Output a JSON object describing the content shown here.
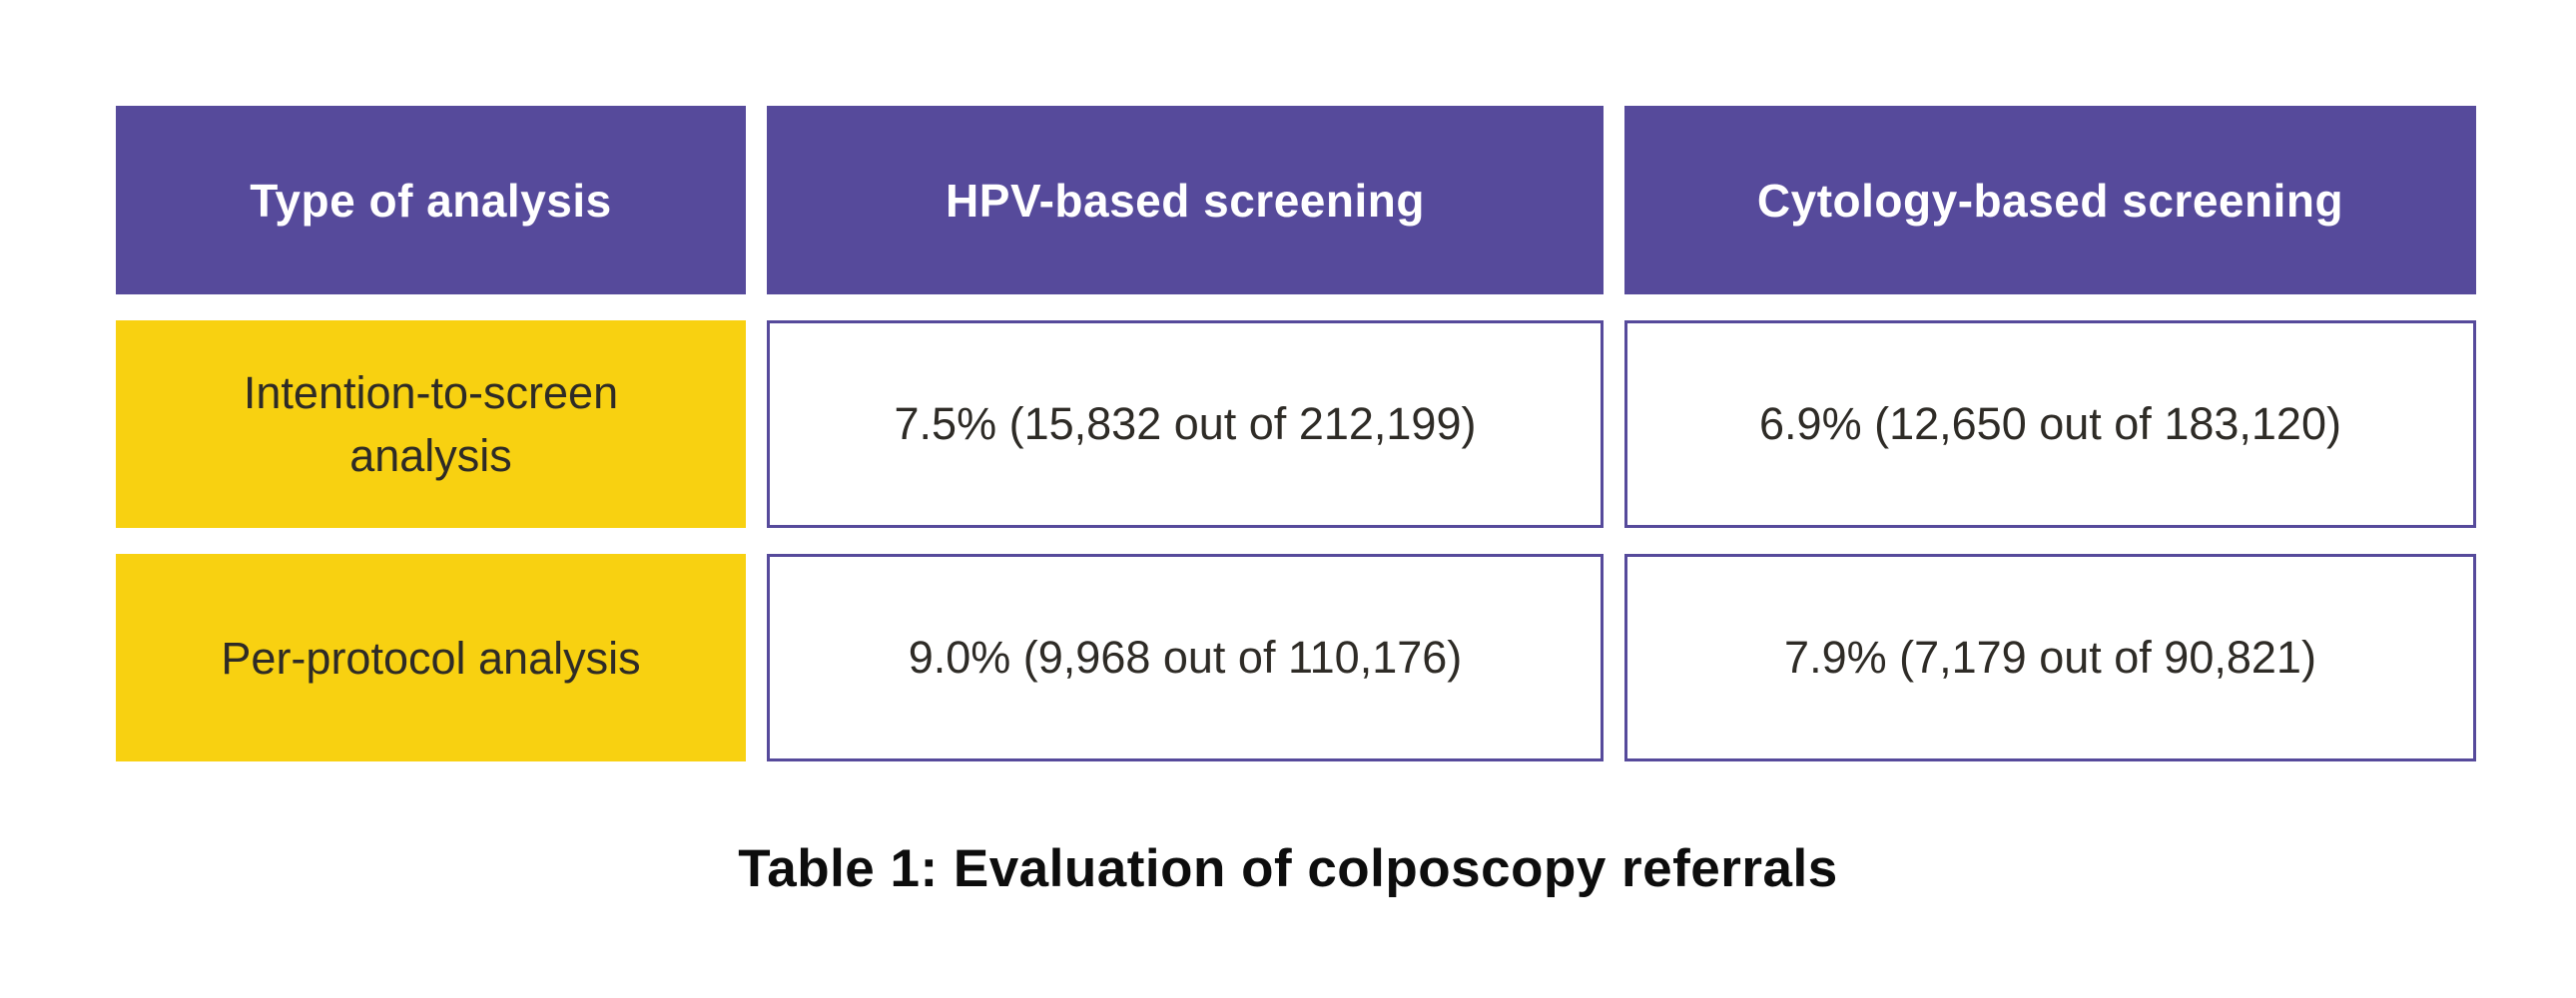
{
  "chart_data": {
    "type": "table",
    "title": "Table 1: Evaluation of colposcopy referrals",
    "columns": [
      "Type of analysis",
      "HPV-based screening",
      "Cytology-based screening"
    ],
    "rows": [
      {
        "label": "Intention-to-screen analysis",
        "hpv_display": "7.5% (15,832 out of 212,199)",
        "cytology_display": "6.9% (12,650 out of 183,120)",
        "hpv_percent": 7.5,
        "hpv_numerator": 15832,
        "hpv_denominator": 212199,
        "cytology_percent": 6.9,
        "cytology_numerator": 12650,
        "cytology_denominator": 183120
      },
      {
        "label": "Per-protocol analysis",
        "hpv_display": "9.0% (9,968 out of 110,176)",
        "cytology_display": "7.9% (7,179 out of 90,821)",
        "hpv_percent": 9.0,
        "hpv_numerator": 9968,
        "hpv_denominator": 110176,
        "cytology_percent": 7.9,
        "cytology_numerator": 7179,
        "cytology_denominator": 90821
      }
    ],
    "layout": {
      "legend": "none",
      "grid": "off",
      "header_position": "top-row",
      "row_labels_position": "left-column"
    }
  },
  "colors": {
    "header_bg": "#564a9b",
    "header_text": "#ffffff",
    "row_label_bg": "#f8d111",
    "row_label_text": "#2e2b26",
    "data_cell_bg": "#ffffff",
    "data_cell_border": "#564a9b",
    "data_cell_text": "#2e2b26",
    "caption_text": "#0d0d0d",
    "page_bg": "#ffffff"
  }
}
